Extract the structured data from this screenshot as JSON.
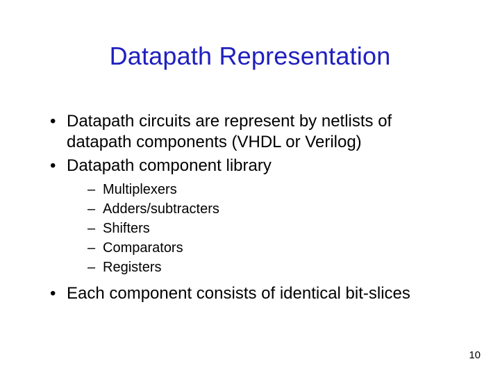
{
  "title": "Datapath Representation",
  "title_color": "#1f1fbf",
  "title_fontsize": 36,
  "body_fontsize": 24,
  "sub_fontsize": 20,
  "background_color": "#ffffff",
  "text_color": "#000000",
  "bullets": [
    {
      "text": "Datapath circuits are represent by netlists of datapath components (VHDL or Verilog)"
    },
    {
      "text": "Datapath component library",
      "sub": [
        "Multiplexers",
        "Adders/subtracters",
        "Shifters",
        "Comparators",
        "Registers"
      ]
    },
    {
      "text": "Each component consists of identical bit-slices"
    }
  ],
  "page_number": "10"
}
